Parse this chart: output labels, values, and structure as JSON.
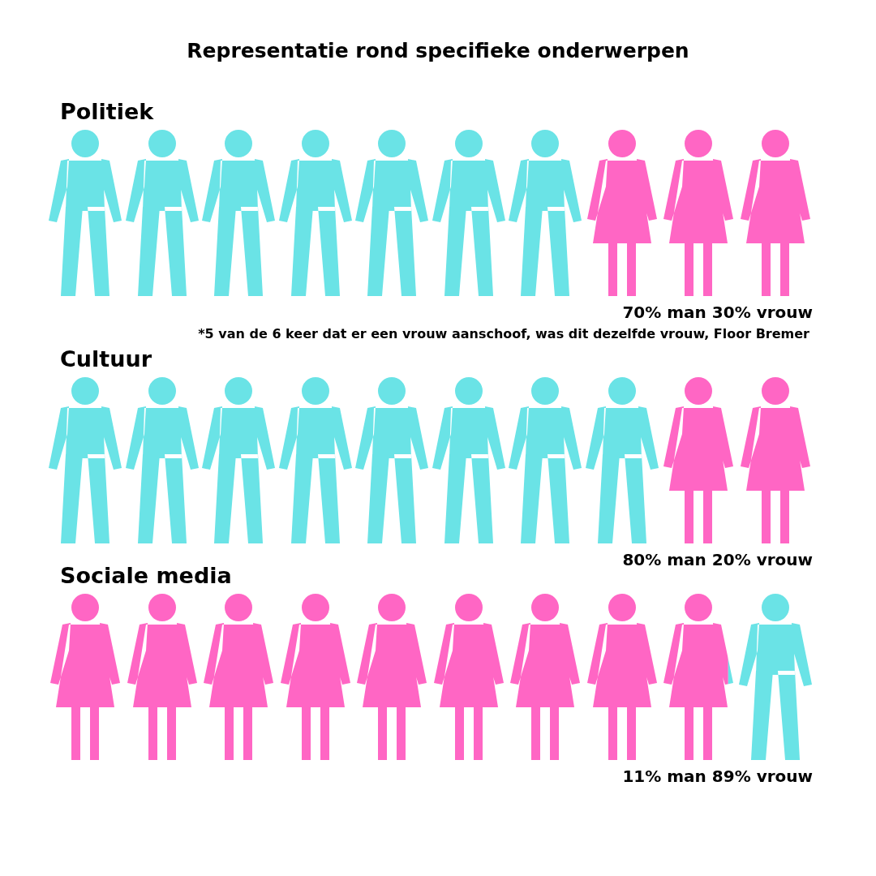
{
  "chart_data": [
    {
      "type": "other",
      "title": "Representatie rond specifieke onderwerpen",
      "subtitle": "Politiek",
      "categories": [
        "man",
        "vrouw"
      ],
      "values": [
        70,
        30
      ],
      "value_labels": [
        "70%",
        "30%"
      ],
      "colors": [
        "#6ae3e6",
        "#ff66c4"
      ],
      "annotations": [
        "*5 van de 6 keer dat er een vrouw aanschoof, was dit dezelfde vrouw, Floor Bremer"
      ]
    },
    {
      "type": "other",
      "subtitle": "Cultuur",
      "categories": [
        "man",
        "vrouw"
      ],
      "values": [
        80,
        20
      ],
      "value_labels": [
        "80%",
        "20%"
      ],
      "colors": [
        "#6ae3e6",
        "#ff66c4"
      ]
    },
    {
      "type": "other",
      "subtitle": "Sociale media",
      "categories": [
        "man",
        "vrouw"
      ],
      "values": [
        11,
        89
      ],
      "value_labels": [
        "11%",
        "89%"
      ],
      "colors": [
        "#6ae3e6",
        "#ff66c4"
      ]
    }
  ]
}
